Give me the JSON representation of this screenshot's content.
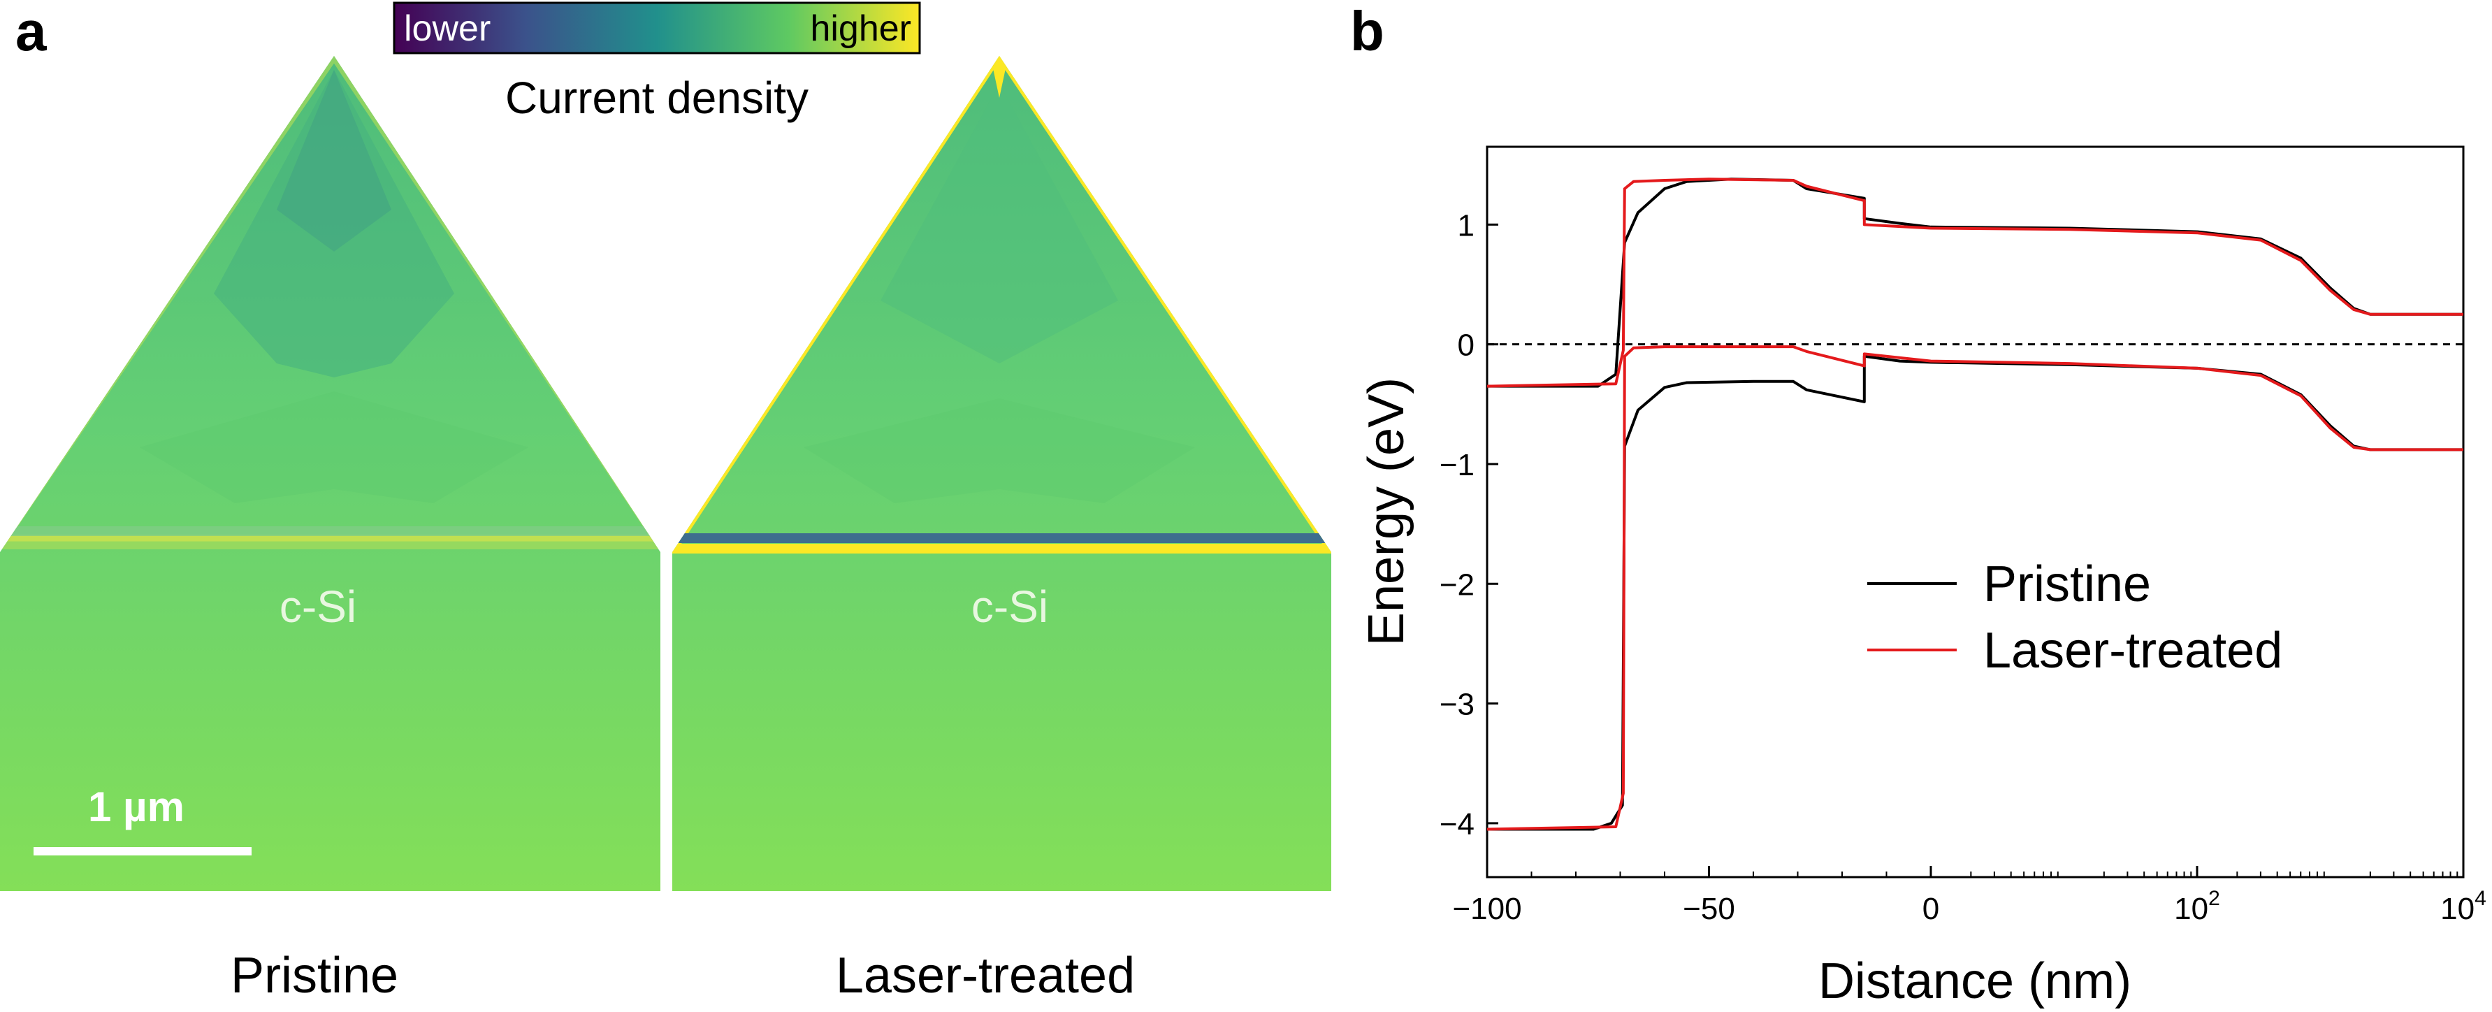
{
  "panel_a": {
    "label": "a",
    "colorbar": {
      "low_label": "lower",
      "high_label": "higher",
      "title": "Current density"
    },
    "left_caption": "Pristine",
    "right_caption": "Laser-treated",
    "material_label": "c-Si",
    "scale_bar_label": "1 µm"
  },
  "chart_data": {
    "type": "line",
    "panel_label": "b",
    "xlabel": "Distance (nm)",
    "ylabel": "Energy (eV)",
    "x_scale": "linear from −100 to 0 nm, logarithmic from 0 to 10^4 nm",
    "ylim": [
      -4.45,
      1.65
    ],
    "x_ticks": [
      {
        "label": "−100",
        "exp": ""
      },
      {
        "label": "−50",
        "exp": ""
      },
      {
        "label": "0",
        "exp": ""
      },
      {
        "label": "10",
        "exp": "2"
      },
      {
        "label": "10",
        "exp": "4"
      }
    ],
    "y_ticks": [
      {
        "value": 1,
        "label": "1"
      },
      {
        "value": 0,
        "label": "0"
      },
      {
        "value": -1,
        "label": "−1"
      },
      {
        "value": -2,
        "label": "−2"
      },
      {
        "value": -3,
        "label": "−3"
      },
      {
        "value": -4,
        "label": "−4"
      }
    ],
    "reference_line": {
      "y": 0,
      "style": "dashed"
    },
    "legend": {
      "position": "center-right"
    },
    "series": [
      {
        "name": "Pristine",
        "color": "#000000",
        "conduction_band": [
          [
            -100,
            -0.35
          ],
          [
            -75,
            -0.35
          ],
          [
            -71,
            -0.25
          ],
          [
            -69,
            0.85
          ],
          [
            -66,
            1.1
          ],
          [
            -60,
            1.3
          ],
          [
            -55,
            1.36
          ],
          [
            -45,
            1.38
          ],
          [
            -31,
            1.37
          ],
          [
            -28,
            1.3
          ],
          [
            -15,
            1.22
          ],
          [
            -15,
            1.05
          ],
          [
            -7,
            1.01
          ],
          [
            0,
            0.98
          ],
          [
            10,
            0.97
          ],
          [
            100,
            0.94
          ],
          [
            300,
            0.88
          ],
          [
            600,
            0.72
          ],
          [
            1000,
            0.47
          ],
          [
            1500,
            0.3
          ],
          [
            2000,
            0.25
          ],
          [
            10000,
            0.25
          ]
        ],
        "valence_band": [
          [
            -100,
            -4.05
          ],
          [
            -76,
            -4.05
          ],
          [
            -72,
            -4.0
          ],
          [
            -69.5,
            -3.85
          ],
          [
            -69,
            -0.85
          ],
          [
            -66,
            -0.55
          ],
          [
            -60,
            -0.36
          ],
          [
            -55,
            -0.32
          ],
          [
            -40,
            -0.31
          ],
          [
            -31,
            -0.31
          ],
          [
            -28,
            -0.38
          ],
          [
            -15,
            -0.48
          ],
          [
            -15,
            -0.1
          ],
          [
            -7,
            -0.14
          ],
          [
            0,
            -0.15
          ],
          [
            10,
            -0.17
          ],
          [
            100,
            -0.2
          ],
          [
            300,
            -0.25
          ],
          [
            600,
            -0.42
          ],
          [
            1000,
            -0.68
          ],
          [
            1500,
            -0.85
          ],
          [
            2000,
            -0.88
          ],
          [
            10000,
            -0.88
          ]
        ]
      },
      {
        "name": "Laser-treated",
        "color": "#e41a1c",
        "conduction_band": [
          [
            -100,
            -0.35
          ],
          [
            -71,
            -0.33
          ],
          [
            -69.3,
            -0.05
          ],
          [
            -69,
            1.3
          ],
          [
            -67,
            1.36
          ],
          [
            -60,
            1.37
          ],
          [
            -50,
            1.38
          ],
          [
            -31,
            1.37
          ],
          [
            -28,
            1.32
          ],
          [
            -15,
            1.2
          ],
          [
            -15,
            1.0
          ],
          [
            0,
            0.97
          ],
          [
            10,
            0.96
          ],
          [
            100,
            0.93
          ],
          [
            300,
            0.87
          ],
          [
            600,
            0.7
          ],
          [
            1000,
            0.45
          ],
          [
            1500,
            0.29
          ],
          [
            2000,
            0.25
          ],
          [
            10000,
            0.25
          ]
        ],
        "valence_band": [
          [
            -100,
            -4.05
          ],
          [
            -71,
            -4.03
          ],
          [
            -69.3,
            -3.75
          ],
          [
            -69,
            -0.1
          ],
          [
            -67,
            -0.03
          ],
          [
            -60,
            -0.02
          ],
          [
            -31,
            -0.02
          ],
          [
            -28,
            -0.06
          ],
          [
            -15,
            -0.18
          ],
          [
            -15,
            -0.08
          ],
          [
            0,
            -0.14
          ],
          [
            10,
            -0.16
          ],
          [
            100,
            -0.2
          ],
          [
            300,
            -0.26
          ],
          [
            600,
            -0.43
          ],
          [
            1000,
            -0.7
          ],
          [
            1500,
            -0.86
          ],
          [
            2000,
            -0.88
          ],
          [
            10000,
            -0.88
          ]
        ]
      }
    ]
  }
}
